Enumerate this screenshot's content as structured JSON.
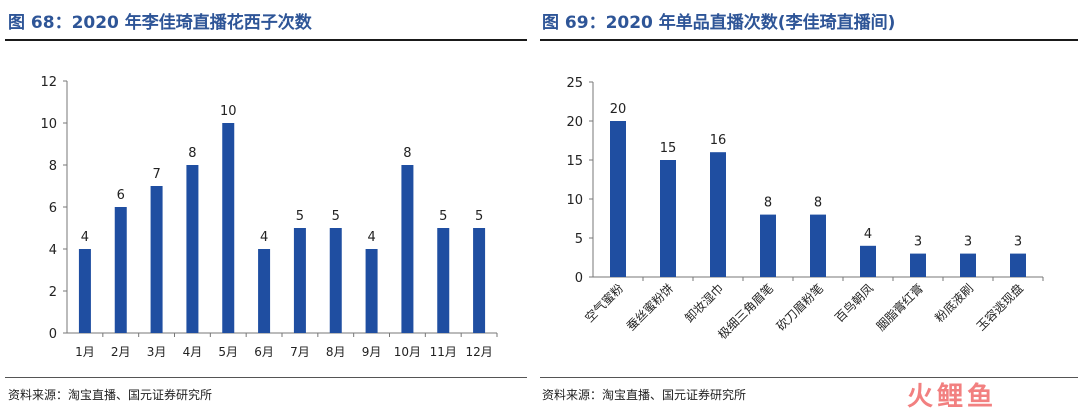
{
  "left": {
    "title": "图 68：2020 年李佳琦直播花西子次数",
    "source": "资料来源：淘宝直播、国元证券研究所"
  },
  "right": {
    "title": "图 69：2020 年单品直播次数(李佳琦直播间)",
    "source": "资料来源：淘宝直播、国元证券研究所"
  },
  "watermark": {
    "text": "火鲤鱼"
  },
  "colors": {
    "bar": "#1f4ea1",
    "axis": "#777777",
    "text": "#222222"
  },
  "chart_data": [
    {
      "type": "bar",
      "title": "图 68：2020 年李佳琦直播花西子次数",
      "categories": [
        "1月",
        "2月",
        "3月",
        "4月",
        "5月",
        "6月",
        "7月",
        "8月",
        "9月",
        "10月",
        "11月",
        "12月"
      ],
      "values": [
        4,
        6,
        7,
        8,
        10,
        4,
        5,
        5,
        4,
        8,
        5,
        5
      ],
      "ylim": [
        0,
        12
      ],
      "yticks": [
        0,
        2,
        4,
        6,
        8,
        10,
        12
      ],
      "grid": false,
      "legend": "none"
    },
    {
      "type": "bar",
      "title": "图 69：2020 年单品直播次数(李佳琦直播间)",
      "categories": [
        "空气蜜粉",
        "蚕丝蜜粉饼",
        "卸妆湿巾",
        "极细三角眉笔",
        "砍刀眉粉笔",
        "百鸟朝凤",
        "胭脂膏红膏",
        "粉底液刷",
        "玉容逃现盘"
      ],
      "values": [
        20,
        15,
        16,
        8,
        8,
        4,
        3,
        3,
        3
      ],
      "ylim": [
        0,
        25
      ],
      "yticks": [
        0,
        5,
        10,
        15,
        20,
        25
      ],
      "grid": false,
      "legend": "none"
    }
  ]
}
